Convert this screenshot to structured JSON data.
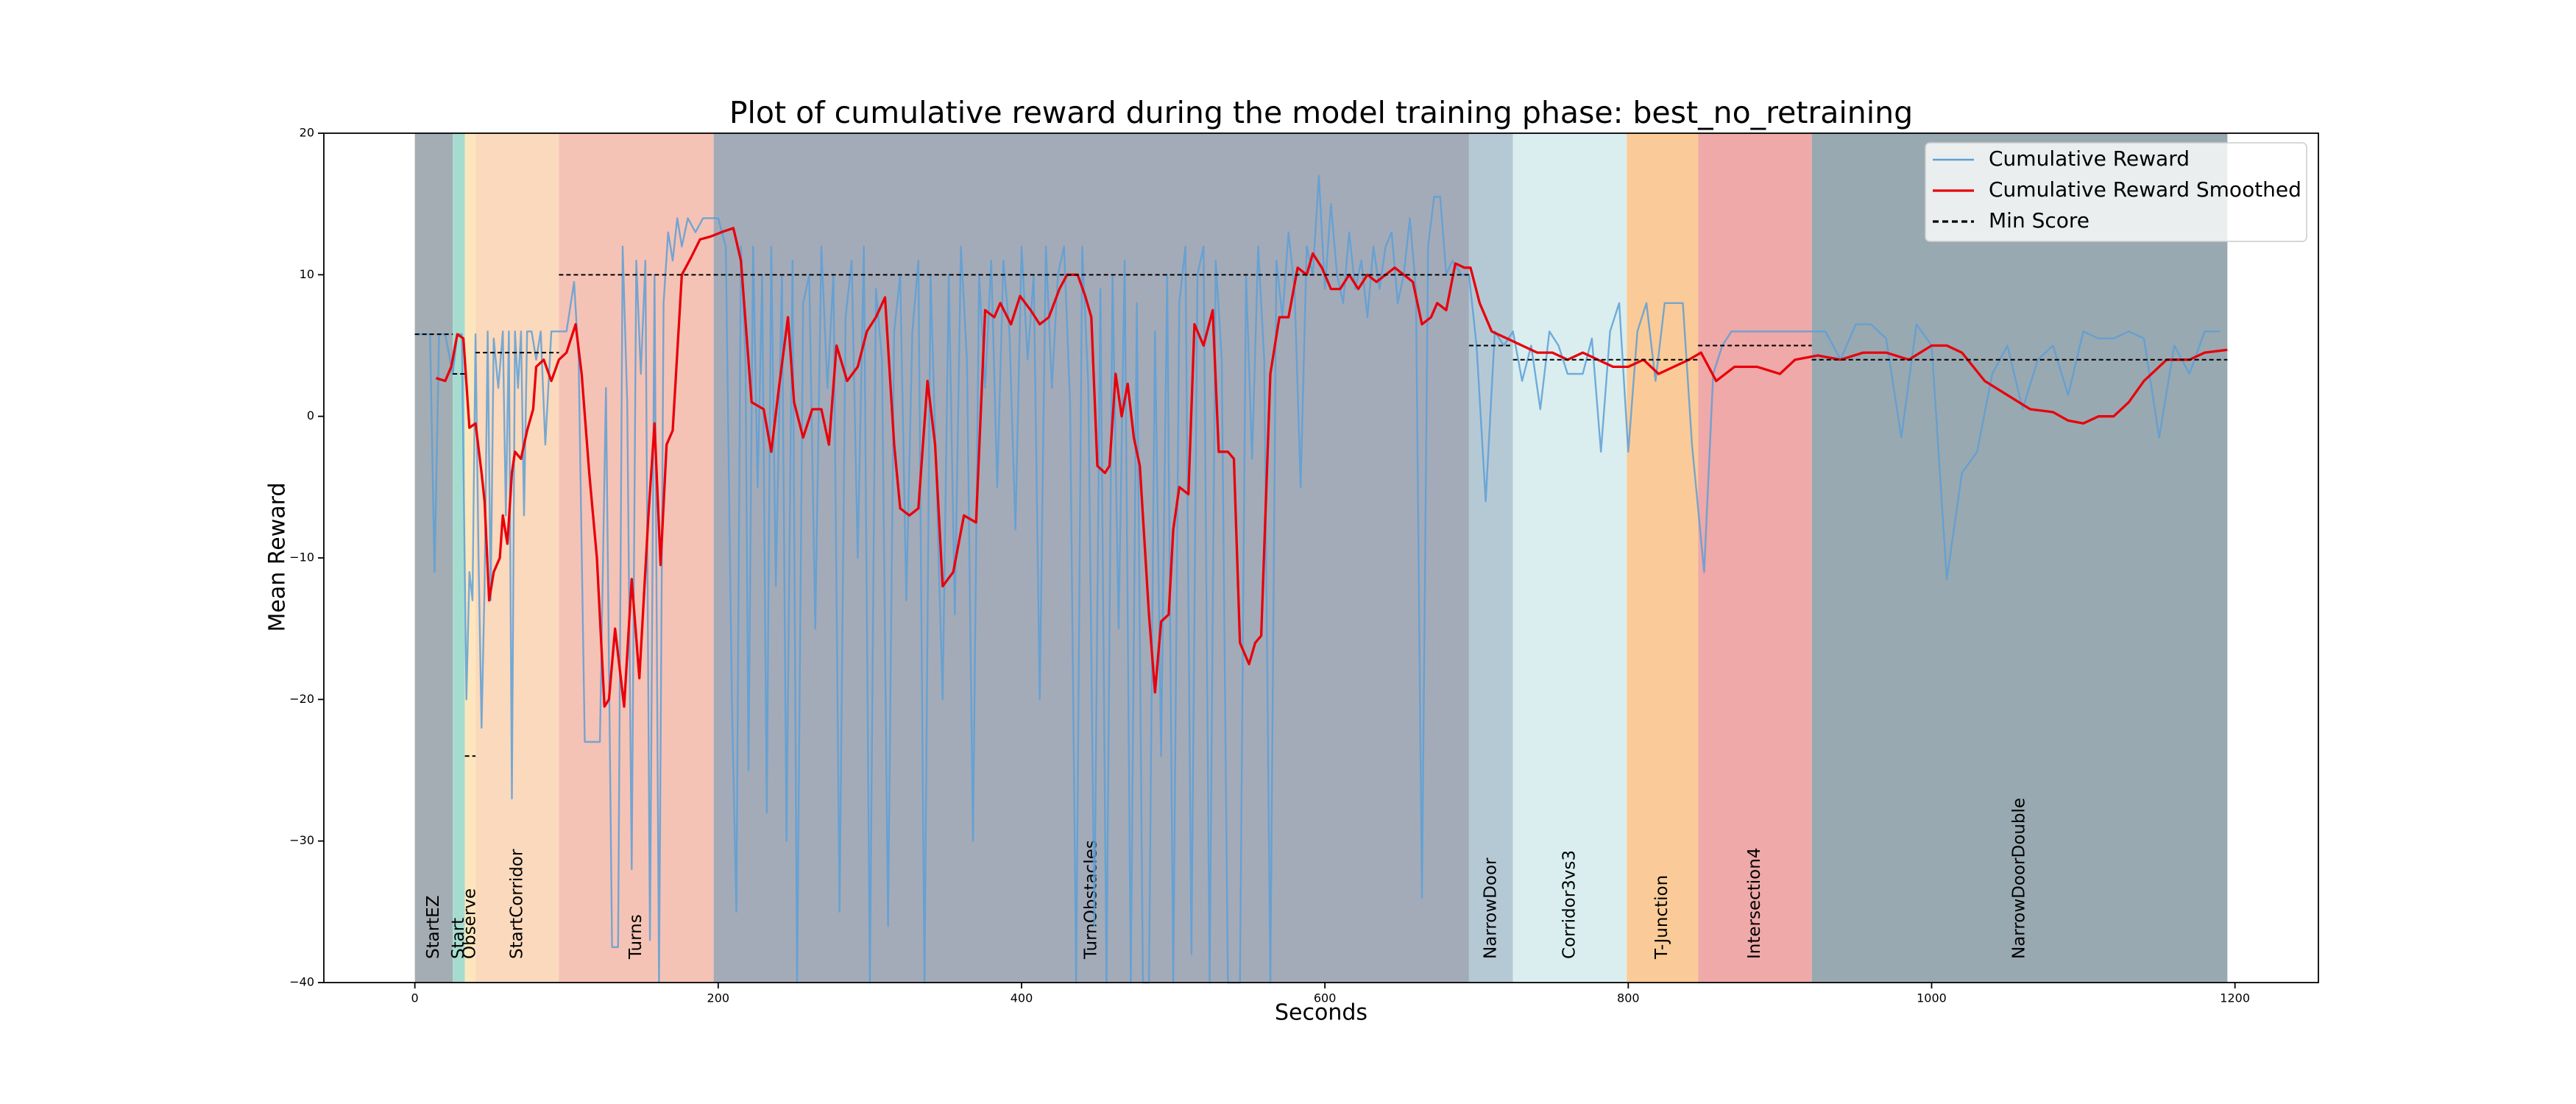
{
  "chart_data": {
    "type": "line",
    "title": "Plot of cumulative reward during the model training phase: best_no_retraining",
    "x_label": "Seconds",
    "y_label": "Mean Reward",
    "xlim": [
      -60,
      1255
    ],
    "ylim": [
      -40,
      20
    ],
    "xticks": [
      0,
      200,
      400,
      600,
      800,
      1000,
      1200
    ],
    "yticks": [
      {
        "value": -40,
        "label": "−40"
      },
      {
        "value": -30,
        "label": "−30"
      },
      {
        "value": -20,
        "label": "−20"
      },
      {
        "value": -10,
        "label": "−10"
      },
      0,
      10,
      20
    ],
    "legend": "upper right",
    "regions": [
      {
        "label": "StartEZ",
        "start": 0,
        "end": 25,
        "color": "#a3adb3"
      },
      {
        "label": "Start",
        "start": 25,
        "end": 33,
        "color": "#a6dccf"
      },
      {
        "label": "Observe",
        "start": 33,
        "end": 40,
        "color": "#fde6bd"
      },
      {
        "label": "StartCorridor",
        "start": 40,
        "end": 95,
        "color": "#fbd9bd"
      },
      {
        "label": "Turns",
        "start": 95,
        "end": 197,
        "color": "#f5c3b6"
      },
      {
        "label": "TurnObstacles",
        "start": 197,
        "end": 695,
        "color": "#a3abb9"
      },
      {
        "label": "NarrowDoor",
        "start": 695,
        "end": 724,
        "color": "#b5c9d5"
      },
      {
        "label": "Corridor3vs3",
        "start": 724,
        "end": 799,
        "color": "#daeeef"
      },
      {
        "label": "T-Junction",
        "start": 799,
        "end": 846,
        "color": "#facb98"
      },
      {
        "label": "Intersection4",
        "start": 846,
        "end": 921,
        "color": "#eea9a8"
      },
      {
        "label": "NarrowDoorDouble",
        "start": 921,
        "end": 1195,
        "color": "#99a9b1"
      }
    ],
    "series": [
      {
        "name": "Cumulative Reward",
        "color": "#5d9fd6",
        "x": [
          0,
          5,
          10,
          13,
          16,
          20,
          25,
          28,
          31,
          34,
          36,
          38,
          40,
          42,
          44,
          46,
          48,
          50,
          52,
          55,
          58,
          60,
          62,
          64,
          66,
          68,
          70,
          72,
          74,
          77,
          80,
          83,
          86,
          90,
          95,
          100,
          105,
          108,
          112,
          118,
          122,
          126,
          130,
          134,
          137,
          140,
          143,
          146,
          149,
          152,
          155,
          158,
          161,
          164,
          167,
          170,
          173,
          176,
          180,
          185,
          190,
          195,
          200,
          205,
          209,
          212,
          215,
          218,
          220,
          223,
          226,
          229,
          232,
          235,
          238,
          242,
          245,
          249,
          252,
          256,
          260,
          264,
          268,
          272,
          276,
          280,
          284,
          288,
          292,
          296,
          300,
          304,
          308,
          312,
          316,
          320,
          324,
          328,
          332,
          336,
          340,
          344,
          348,
          352,
          356,
          360,
          364,
          368,
          372,
          376,
          380,
          384,
          388,
          392,
          396,
          400,
          404,
          408,
          412,
          416,
          420,
          424,
          428,
          432,
          436,
          440,
          444,
          448,
          452,
          456,
          460,
          464,
          468,
          472,
          476,
          480,
          484,
          488,
          492,
          496,
          500,
          504,
          508,
          512,
          516,
          520,
          524,
          528,
          532,
          536,
          540,
          544,
          548,
          552,
          556,
          560,
          564,
          568,
          572,
          576,
          580,
          584,
          588,
          592,
          596,
          600,
          604,
          608,
          612,
          616,
          620,
          624,
          628,
          632,
          636,
          640,
          644,
          648,
          652,
          656,
          660,
          664,
          668,
          672,
          676,
          680,
          684,
          690,
          695,
          700,
          706,
          712,
          718,
          724,
          730,
          736,
          742,
          748,
          754,
          760,
          770,
          776,
          782,
          788,
          794,
          800,
          806,
          812,
          818,
          824,
          830,
          836,
          842,
          850,
          856,
          862,
          868,
          880,
          890,
          900,
          910,
          920,
          930,
          940,
          950,
          960,
          970,
          980,
          990,
          1000,
          1010,
          1020,
          1030,
          1040,
          1050,
          1060,
          1070,
          1080,
          1090,
          1100,
          1110,
          1120,
          1130,
          1140,
          1150,
          1160,
          1170,
          1180,
          1190
        ],
        "values": [
          5.8,
          5.8,
          5.8,
          -11,
          5.8,
          5.8,
          3,
          5.8,
          5.8,
          -20,
          -11,
          -13,
          5.8,
          -10,
          -22,
          -12,
          6,
          -13,
          5.5,
          2,
          6,
          -7,
          6,
          -27,
          6,
          2,
          6,
          -7,
          6,
          6,
          4,
          6,
          -2,
          6,
          6,
          6,
          9.5,
          4,
          -23,
          -23,
          -23,
          2,
          -37.5,
          -37.5,
          12,
          1,
          -32,
          11,
          3,
          11,
          -37,
          10,
          -40,
          8,
          13,
          11,
          14,
          12,
          14,
          13,
          14,
          14,
          14,
          12,
          -20,
          -35,
          12,
          4,
          -25,
          12,
          -5,
          10,
          -28,
          12,
          -12,
          10,
          -30,
          11,
          -40,
          8,
          10,
          -15,
          12,
          2,
          10,
          -35,
          7,
          11,
          -10,
          12,
          -40,
          9,
          4,
          -36,
          6,
          10,
          -13,
          6,
          11,
          -40,
          10,
          -5,
          -20,
          10,
          -14,
          12,
          4,
          -30,
          10,
          2,
          11,
          -5,
          11,
          6,
          -8,
          12,
          4,
          10,
          -20,
          12,
          2,
          10,
          12,
          1,
          -40,
          12,
          2,
          -36,
          9,
          -40,
          10,
          -15,
          11,
          -40,
          8,
          -40,
          -40,
          6,
          -24,
          10,
          -40,
          8,
          12,
          -38,
          10,
          12,
          -40,
          11,
          4,
          -40,
          -40,
          -40,
          10,
          -3,
          12,
          4,
          -40,
          11,
          7,
          13,
          9,
          -5,
          12,
          10,
          17,
          9,
          15,
          10,
          8,
          13,
          9,
          11,
          7,
          12,
          9,
          12,
          13,
          8,
          10,
          14,
          9,
          -34,
          12,
          15.5,
          15.5,
          10,
          11,
          10,
          10,
          5,
          -6,
          6,
          5,
          6,
          2.5,
          5,
          0.5,
          6,
          5,
          3,
          3,
          5.5,
          -2.5,
          6,
          8,
          -2.5,
          6,
          8,
          2.5,
          8,
          8,
          8,
          -2,
          -11,
          3,
          5,
          6,
          6,
          6,
          6,
          6,
          6,
          6,
          4,
          6.5,
          6.5,
          5.5,
          -1.5,
          6.5,
          5,
          -11.5,
          -4,
          -2.5,
          3,
          5,
          0.5,
          4,
          5,
          1.5,
          6,
          5.5,
          5.5,
          6,
          5.5,
          -1.5,
          5,
          3,
          6,
          6
        ]
      },
      {
        "name": "Cumulative Reward Smoothed",
        "color": "#e8000b",
        "x": [
          14,
          20,
          24,
          28,
          32,
          36,
          40,
          44,
          46,
          49,
          52,
          56,
          58,
          61,
          64,
          66,
          70,
          74,
          78,
          80,
          85,
          90,
          95,
          100,
          106,
          110,
          115,
          120,
          125,
          128,
          132,
          138,
          143,
          148,
          154,
          158,
          162,
          166,
          170,
          176,
          182,
          188,
          195,
          202,
          210,
          215,
          222,
          230,
          235,
          240,
          246,
          250,
          256,
          262,
          268,
          273,
          278,
          285,
          292,
          298,
          304,
          310,
          316,
          320,
          326,
          332,
          338,
          343,
          348,
          355,
          362,
          370,
          376,
          382,
          386,
          393,
          399,
          406,
          412,
          418,
          425,
          430,
          437,
          442,
          446,
          450,
          455,
          458,
          462,
          466,
          470,
          474,
          478,
          484,
          488,
          492,
          497,
          500,
          504,
          510,
          514,
          520,
          526,
          530,
          536,
          540,
          544,
          550,
          554,
          558,
          564,
          570,
          576,
          582,
          588,
          592,
          598,
          604,
          610,
          616,
          622,
          628,
          634,
          640,
          646,
          652,
          658,
          664,
          670,
          674,
          680,
          686,
          692,
          696,
          702,
          710,
          720,
          730,
          740,
          750,
          760,
          770,
          780,
          790,
          800,
          810,
          820,
          830,
          840,
          848,
          858,
          870,
          885,
          900,
          910,
          925,
          940,
          955,
          970,
          985,
          1000,
          1010,
          1020,
          1035,
          1050,
          1065,
          1080,
          1090,
          1100,
          1110,
          1120,
          1130,
          1140,
          1155,
          1170,
          1180,
          1195
        ],
        "values": [
          2.7,
          2.5,
          3.5,
          5.8,
          5.5,
          -0.8,
          -0.5,
          -4,
          -6,
          -13,
          -11,
          -10,
          -7,
          -9,
          -4,
          -2.5,
          -3,
          -1,
          0.5,
          3.5,
          4,
          2.5,
          4,
          4.5,
          6.5,
          3,
          -4,
          -10,
          -20.5,
          -20,
          -15,
          -20.5,
          -11.5,
          -18.5,
          -7,
          -0.5,
          -10.5,
          -2,
          -1,
          10,
          11.2,
          12.5,
          12.7,
          13,
          13.3,
          11,
          1,
          0.5,
          -2.5,
          2,
          7,
          1,
          -1.5,
          0.5,
          0.5,
          -2,
          5,
          2.5,
          3.5,
          6,
          7,
          8.4,
          -2,
          -6.5,
          -7,
          -6.5,
          2.5,
          -2,
          -12,
          -11,
          -7,
          -7.5,
          7.5,
          7,
          8,
          6.5,
          8.5,
          7.5,
          6.5,
          7,
          9,
          10,
          10,
          8.5,
          7,
          -3.5,
          -4,
          -3.5,
          3,
          0,
          2.3,
          -1.5,
          -3.5,
          -14,
          -19.5,
          -14.5,
          -14,
          -8,
          -5,
          -5.5,
          6.5,
          5,
          7.5,
          -2.5,
          -2.5,
          -3,
          -16,
          -17.5,
          -16,
          -15.5,
          3,
          7,
          7,
          10.5,
          10,
          11.5,
          10.5,
          9,
          9,
          10,
          9,
          10,
          9.5,
          10,
          10.5,
          10,
          9.5,
          6.5,
          7,
          8,
          7.5,
          10.8,
          10.5,
          10.5,
          8,
          6,
          5.5,
          5,
          4.5,
          4.5,
          4,
          4.5,
          4,
          3.5,
          3.5,
          4,
          3,
          3.5,
          4,
          4.5,
          2.5,
          3.5,
          3.5,
          3,
          4,
          4.3,
          4,
          4.5,
          4.5,
          4,
          5,
          5,
          4.5,
          2.5,
          1.5,
          0.5,
          0.3,
          -0.3,
          -0.5,
          0,
          0,
          1,
          2.5,
          4,
          4,
          4.5,
          4.7
        ]
      },
      {
        "name": "Min Score",
        "color": "#000000",
        "values": [
          5.8,
          3,
          -24,
          4.5,
          10,
          10,
          5,
          4,
          4,
          5,
          4
        ]
      }
    ]
  }
}
